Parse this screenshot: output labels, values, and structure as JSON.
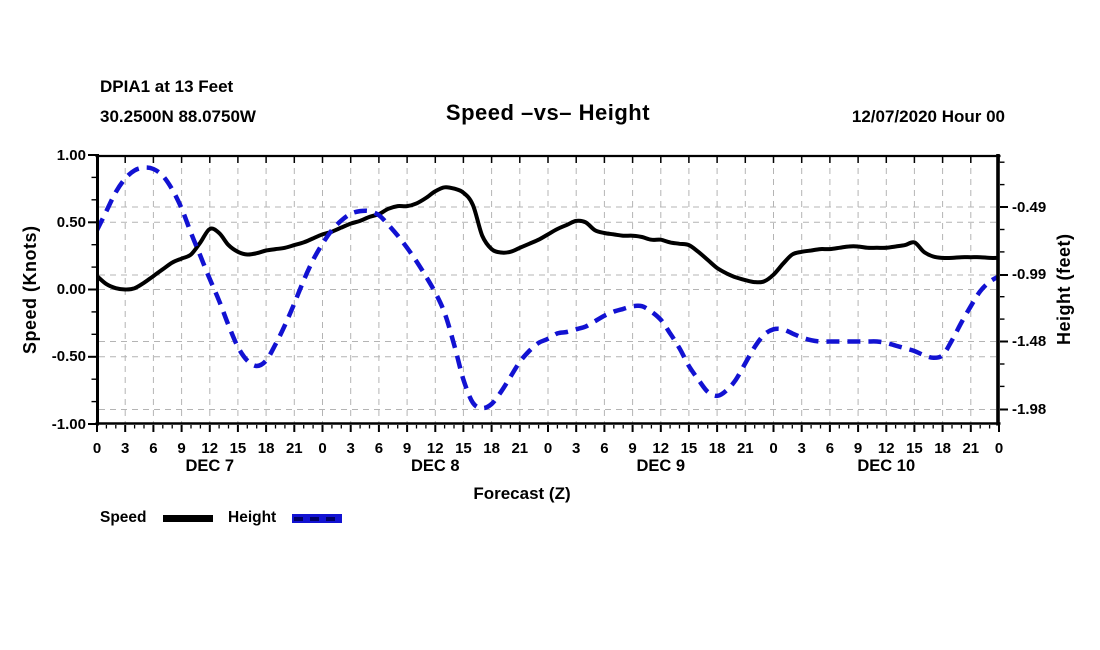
{
  "header": {
    "station_line1": "DPIA1 at 13 Feet",
    "station_line2": "30.2500N 88.0750W",
    "title": "Speed –vs– Height",
    "datetime": "12/07/2020 Hour 00"
  },
  "legend": {
    "speed_label": "Speed",
    "height_label": "Height"
  },
  "chart_data": {
    "type": "line",
    "title": "Speed –vs– Height",
    "station": "DPIA1 at 13 Feet",
    "location": "30.2500N 88.0750W",
    "forecast_start": "12/07/2020 Hour 00",
    "xlabel": "Forecast (Z)",
    "ylabel_left": "Speed (Knots)",
    "ylabel_right": "Height (feet)",
    "legend_position": "bottom-left",
    "grid": {
      "on": true,
      "color": "#b4b4b4",
      "dash": "6 5"
    },
    "x_axis": {
      "range_hours": [
        0,
        96
      ],
      "major_tick_hours": 3,
      "minor_tick_hours": 1,
      "tick_labels": [
        "0",
        "3",
        "6",
        "9",
        "12",
        "15",
        "18",
        "21",
        "0",
        "3",
        "6",
        "9",
        "12",
        "15",
        "18",
        "21",
        "0",
        "3",
        "6",
        "9",
        "12",
        "15",
        "18",
        "21",
        "0",
        "3",
        "6",
        "9",
        "12",
        "15",
        "18",
        "21",
        "0"
      ],
      "day_labels": [
        "DEC 7",
        "DEC 8",
        "DEC 9",
        "DEC 10"
      ],
      "day_center_hours": [
        12,
        36,
        60,
        84
      ]
    },
    "y_left": {
      "range": [
        -1.0,
        1.0
      ],
      "tick_values": [
        1.0,
        0.5,
        0.0,
        -0.5,
        -1.0
      ],
      "tick_labels": [
        "1.00",
        "0.50",
        "0.00",
        "-0.50",
        "-1.00"
      ],
      "minor_divisions_per_major": 3,
      "gridline_values": [
        0.5,
        0.0,
        -0.5
      ]
    },
    "y_right": {
      "range": [
        -2.087,
        -0.107
      ],
      "tick_values": [
        -0.49,
        -0.99,
        -1.48,
        -1.98
      ],
      "tick_labels": [
        "-0.49",
        "-0.99",
        "-1.48",
        "-1.98"
      ],
      "minor_step": 0.165,
      "gridline_values": [
        -0.49,
        -0.99,
        -1.48,
        -1.98
      ]
    },
    "series": [
      {
        "name": "Speed",
        "axis": "left",
        "units": "Knots",
        "color": "#000000",
        "style": "solid",
        "width": 4,
        "points": [
          [
            0,
            0.1
          ],
          [
            1,
            0.04
          ],
          [
            2,
            0.01
          ],
          [
            3,
            0.0
          ],
          [
            4,
            0.01
          ],
          [
            5,
            0.05
          ],
          [
            6,
            0.1
          ],
          [
            7,
            0.15
          ],
          [
            8,
            0.2
          ],
          [
            9,
            0.23
          ],
          [
            10,
            0.26
          ],
          [
            11,
            0.35
          ],
          [
            12,
            0.45
          ],
          [
            13,
            0.42
          ],
          [
            14,
            0.33
          ],
          [
            15,
            0.28
          ],
          [
            16,
            0.26
          ],
          [
            17,
            0.27
          ],
          [
            18,
            0.29
          ],
          [
            19,
            0.3
          ],
          [
            20,
            0.31
          ],
          [
            21,
            0.33
          ],
          [
            22,
            0.35
          ],
          [
            23,
            0.38
          ],
          [
            24,
            0.41
          ],
          [
            25,
            0.43
          ],
          [
            26,
            0.46
          ],
          [
            27,
            0.49
          ],
          [
            28,
            0.51
          ],
          [
            29,
            0.54
          ],
          [
            30,
            0.56
          ],
          [
            31,
            0.6
          ],
          [
            32,
            0.62
          ],
          [
            33,
            0.62
          ],
          [
            34,
            0.64
          ],
          [
            35,
            0.68
          ],
          [
            36,
            0.73
          ],
          [
            37,
            0.76
          ],
          [
            38,
            0.75
          ],
          [
            39,
            0.72
          ],
          [
            40,
            0.63
          ],
          [
            41,
            0.4
          ],
          [
            42,
            0.3
          ],
          [
            43,
            0.275
          ],
          [
            44,
            0.28
          ],
          [
            45,
            0.31
          ],
          [
            46,
            0.34
          ],
          [
            47,
            0.37
          ],
          [
            48,
            0.41
          ],
          [
            49,
            0.45
          ],
          [
            50,
            0.48
          ],
          [
            51,
            0.51
          ],
          [
            52,
            0.5
          ],
          [
            53,
            0.44
          ],
          [
            54,
            0.42
          ],
          [
            55,
            0.41
          ],
          [
            56,
            0.4
          ],
          [
            57,
            0.4
          ],
          [
            58,
            0.39
          ],
          [
            59,
            0.37
          ],
          [
            60,
            0.37
          ],
          [
            61,
            0.35
          ],
          [
            62,
            0.34
          ],
          [
            63,
            0.33
          ],
          [
            64,
            0.28
          ],
          [
            65,
            0.22
          ],
          [
            66,
            0.16
          ],
          [
            67,
            0.12
          ],
          [
            68,
            0.09
          ],
          [
            69,
            0.07
          ],
          [
            70,
            0.055
          ],
          [
            71,
            0.06
          ],
          [
            72,
            0.11
          ],
          [
            73,
            0.19
          ],
          [
            74,
            0.26
          ],
          [
            75,
            0.28
          ],
          [
            76,
            0.29
          ],
          [
            77,
            0.3
          ],
          [
            78,
            0.3
          ],
          [
            79,
            0.31
          ],
          [
            80,
            0.32
          ],
          [
            81,
            0.32
          ],
          [
            82,
            0.31
          ],
          [
            83,
            0.31
          ],
          [
            84,
            0.31
          ],
          [
            85,
            0.32
          ],
          [
            86,
            0.33
          ],
          [
            87,
            0.35
          ],
          [
            88,
            0.28
          ],
          [
            89,
            0.245
          ],
          [
            90,
            0.235
          ],
          [
            91,
            0.235
          ],
          [
            92,
            0.24
          ],
          [
            93,
            0.24
          ],
          [
            94,
            0.24
          ],
          [
            95,
            0.235
          ],
          [
            96,
            0.235
          ]
        ]
      },
      {
        "name": "Height",
        "axis": "right",
        "units": "feet",
        "color": "#1212d2",
        "style": "dashed",
        "width": 4.5,
        "dash": "13 8",
        "points": [
          [
            0,
            -0.66
          ],
          [
            1,
            -0.52
          ],
          [
            2,
            -0.38
          ],
          [
            3,
            -0.28
          ],
          [
            4,
            -0.22
          ],
          [
            5,
            -0.2
          ],
          [
            6,
            -0.21
          ],
          [
            7,
            -0.26
          ],
          [
            8,
            -0.36
          ],
          [
            9,
            -0.5
          ],
          [
            10,
            -0.68
          ],
          [
            11,
            -0.85
          ],
          [
            12,
            -1.02
          ],
          [
            13,
            -1.18
          ],
          [
            14,
            -1.36
          ],
          [
            15,
            -1.52
          ],
          [
            16,
            -1.62
          ],
          [
            17,
            -1.66
          ],
          [
            18,
            -1.62
          ],
          [
            19,
            -1.5
          ],
          [
            20,
            -1.36
          ],
          [
            21,
            -1.2
          ],
          [
            22,
            -1.03
          ],
          [
            23,
            -0.88
          ],
          [
            24,
            -0.76
          ],
          [
            25,
            -0.66
          ],
          [
            26,
            -0.59
          ],
          [
            27,
            -0.54
          ],
          [
            28,
            -0.52
          ],
          [
            29,
            -0.52
          ],
          [
            30,
            -0.55
          ],
          [
            31,
            -0.62
          ],
          [
            32,
            -0.7
          ],
          [
            33,
            -0.79
          ],
          [
            34,
            -0.89
          ],
          [
            35,
            -1.0
          ],
          [
            36,
            -1.12
          ],
          [
            37,
            -1.27
          ],
          [
            38,
            -1.5
          ],
          [
            39,
            -1.76
          ],
          [
            40,
            -1.93
          ],
          [
            41,
            -1.97
          ],
          [
            42,
            -1.94
          ],
          [
            43,
            -1.85
          ],
          [
            44,
            -1.74
          ],
          [
            45,
            -1.63
          ],
          [
            46,
            -1.55
          ],
          [
            47,
            -1.49
          ],
          [
            48,
            -1.46
          ],
          [
            49,
            -1.42
          ],
          [
            50,
            -1.41
          ],
          [
            51,
            -1.39
          ],
          [
            52,
            -1.37
          ],
          [
            53,
            -1.33
          ],
          [
            54,
            -1.29
          ],
          [
            55,
            -1.26
          ],
          [
            56,
            -1.24
          ],
          [
            57,
            -1.22
          ],
          [
            58,
            -1.22
          ],
          [
            59,
            -1.26
          ],
          [
            60,
            -1.32
          ],
          [
            61,
            -1.42
          ],
          [
            62,
            -1.53
          ],
          [
            63,
            -1.66
          ],
          [
            64,
            -1.76
          ],
          [
            65,
            -1.85
          ],
          [
            66,
            -1.88
          ],
          [
            67,
            -1.84
          ],
          [
            68,
            -1.76
          ],
          [
            69,
            -1.64
          ],
          [
            70,
            -1.52
          ],
          [
            71,
            -1.43
          ],
          [
            72,
            -1.39
          ],
          [
            73,
            -1.39
          ],
          [
            74,
            -1.42
          ],
          [
            75,
            -1.45
          ],
          [
            76,
            -1.47
          ],
          [
            77,
            -1.48
          ],
          [
            78,
            -1.48
          ],
          [
            79,
            -1.48
          ],
          [
            80,
            -1.48
          ],
          [
            81,
            -1.48
          ],
          [
            82,
            -1.48
          ],
          [
            83,
            -1.48
          ],
          [
            84,
            -1.49
          ],
          [
            85,
            -1.51
          ],
          [
            86,
            -1.53
          ],
          [
            87,
            -1.55
          ],
          [
            88,
            -1.58
          ],
          [
            89,
            -1.6
          ],
          [
            90,
            -1.58
          ],
          [
            91,
            -1.47
          ],
          [
            92,
            -1.34
          ],
          [
            93,
            -1.22
          ],
          [
            94,
            -1.11
          ],
          [
            95,
            -1.04
          ],
          [
            96,
            -1.0
          ]
        ]
      }
    ]
  }
}
